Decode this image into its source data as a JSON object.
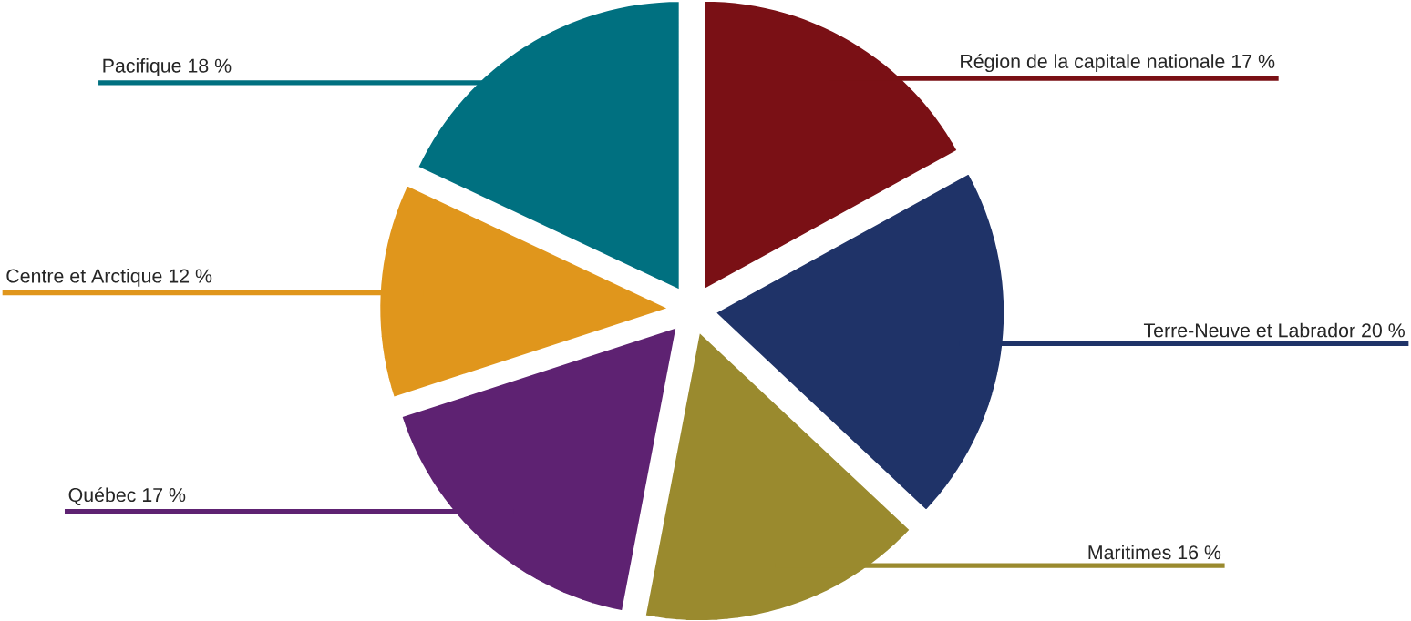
{
  "chart_data": {
    "type": "pie",
    "categories": [
      "Région de la capitale nationale",
      "Terre-Neuve et Labrador",
      "Maritimes",
      "Québec",
      "Centre et Arctique",
      "Pacifique"
    ],
    "values": [
      17,
      20,
      16,
      17,
      12,
      18
    ],
    "value_labels": [
      "17 %",
      "20 %",
      "16 %",
      "17 %",
      "12 %",
      "18 %"
    ],
    "colors": [
      "#7a1015",
      "#1f3368",
      "#9a8a2e",
      "#5e2272",
      "#e0961c",
      "#007080"
    ]
  }
}
